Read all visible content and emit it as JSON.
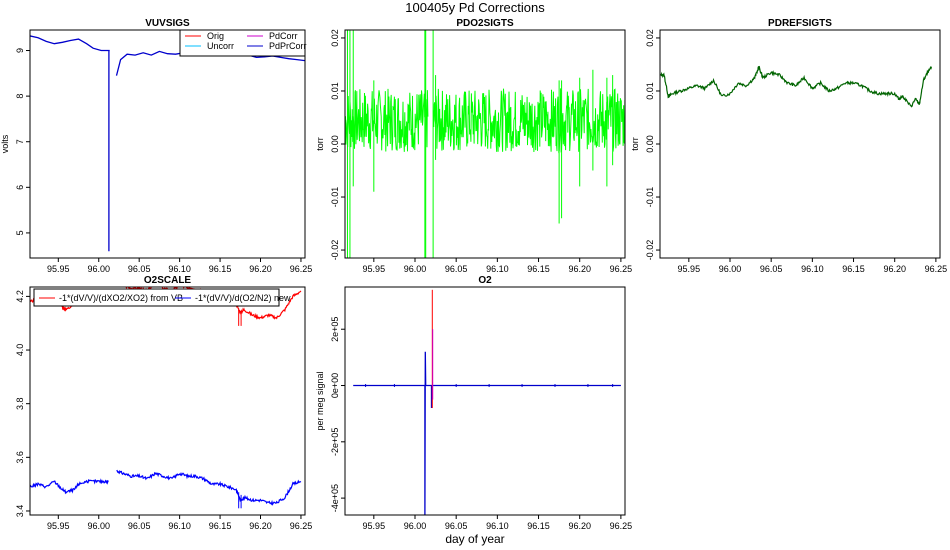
{
  "suptitle": "100405y   Pd Corrections",
  "xlabel": "day of year",
  "chart_data": [
    {
      "id": "vuvsigs",
      "type": "line",
      "title": "VUVSIGS",
      "xlabel": "",
      "ylabel": "volts",
      "xlim": [
        95.915,
        96.255
      ],
      "ylim": [
        4.45,
        9.45
      ],
      "xticks": [
        95.95,
        96.0,
        96.05,
        96.1,
        96.15,
        96.2,
        96.25
      ],
      "xtick_labels": [
        "95.95",
        "96.00",
        "96.05",
        "96.10",
        "96.15",
        "96.20",
        "96.25"
      ],
      "yticks": [
        5,
        6,
        7,
        8,
        9
      ],
      "ytick_labels": [
        "5",
        "6",
        "7",
        "8",
        "9"
      ],
      "legend": {
        "position": "top-right",
        "entries": [
          {
            "name": "Orig",
            "color": "#ff0000"
          },
          {
            "name": "PdCorr",
            "color": "#cc00cc"
          },
          {
            "name": "Uncorr",
            "color": "#00bfff"
          },
          {
            "name": "PdPrCorr",
            "color": "#0000cc"
          }
        ]
      },
      "series": [
        {
          "name": "PdPrCorr",
          "color": "#0000cc",
          "segments": [
            {
              "x": [
                95.915,
                95.925,
                95.935,
                95.945,
                95.955,
                95.965,
                95.975,
                95.985,
                95.993,
                96.003,
                96.0125,
                96.0125,
                96.0125,
                96.0135
              ],
              "y": [
                9.32,
                9.28,
                9.2,
                9.15,
                9.18,
                9.22,
                9.25,
                9.15,
                9.05,
                9.0,
                9.0,
                4.6,
                9.0,
                9.0
              ]
            },
            {
              "x": [
                96.022,
                96.027,
                96.035,
                96.045,
                96.055,
                96.065,
                96.075,
                96.085,
                96.095,
                96.105,
                96.115,
                96.125,
                96.135,
                96.145,
                96.155,
                96.165,
                96.175,
                96.185,
                96.195,
                96.205,
                96.215,
                96.225,
                96.235,
                96.245,
                96.255
              ],
              "y": [
                8.45,
                8.8,
                8.92,
                8.9,
                8.95,
                8.9,
                8.98,
                8.93,
                8.92,
                8.95,
                9.0,
                8.95,
                8.92,
                8.96,
                8.94,
                8.93,
                8.92,
                8.9,
                8.85,
                8.86,
                8.88,
                8.85,
                8.82,
                8.8,
                8.78
              ]
            }
          ]
        }
      ]
    },
    {
      "id": "pdo2sigts",
      "type": "line",
      "title": "PDO2SIGTS",
      "xlabel": "",
      "ylabel": "torr",
      "xlim": [
        95.915,
        96.255
      ],
      "ylim": [
        -0.0215,
        0.0215
      ],
      "xticks": [
        95.95,
        96.0,
        96.05,
        96.1,
        96.15,
        96.2,
        96.25
      ],
      "xtick_labels": [
        "95.95",
        "96.00",
        "96.05",
        "96.10",
        "96.15",
        "96.20",
        "96.25"
      ],
      "yticks": [
        -0.02,
        -0.01,
        0.0,
        0.01,
        0.02
      ],
      "ytick_labels": [
        "-0.02",
        "-0.01",
        "0.00",
        "0.01",
        "0.02"
      ],
      "noise_band": {
        "color": "#00ff00",
        "center": 0.0045,
        "half_width": 0.006,
        "gaps": [
          [
            96.016,
            96.022
          ]
        ]
      },
      "spikes": [
        {
          "x": 95.918,
          "y_low": -0.0215,
          "y_high": 0.0215
        },
        {
          "x": 95.921,
          "y_low": -0.0215,
          "y_high": 0.0215
        },
        {
          "x": 95.925,
          "y_low": -0.008,
          "y_high": 0.0215
        },
        {
          "x": 95.95,
          "y_low": -0.009,
          "y_high": 0.012
        },
        {
          "x": 96.012,
          "y_low": -0.0215,
          "y_high": 0.0215
        },
        {
          "x": 96.013,
          "y_low": -0.0215,
          "y_high": 0.0215
        },
        {
          "x": 96.022,
          "y_low": -0.0215,
          "y_high": 0.0215
        },
        {
          "x": 96.025,
          "y_low": -0.003,
          "y_high": 0.013
        },
        {
          "x": 96.175,
          "y_low": -0.015,
          "y_high": 0.012
        },
        {
          "x": 96.178,
          "y_low": -0.014,
          "y_high": 0.012
        },
        {
          "x": 96.2,
          "y_low": -0.008,
          "y_high": 0.0125
        },
        {
          "x": 96.216,
          "y_low": -0.005,
          "y_high": 0.014
        },
        {
          "x": 96.233,
          "y_low": -0.008,
          "y_high": 0.0125
        },
        {
          "x": 96.24,
          "y_low": -0.004,
          "y_high": 0.013
        }
      ]
    },
    {
      "id": "pdrefsigts",
      "type": "line",
      "title": "PDREFSIGTS",
      "xlabel": "",
      "ylabel": "torr",
      "xlim": [
        95.915,
        96.255
      ],
      "ylim": [
        -0.0215,
        0.0215
      ],
      "xticks": [
        95.95,
        96.0,
        96.05,
        96.1,
        96.15,
        96.2,
        96.25
      ],
      "xtick_labels": [
        "95.95",
        "96.00",
        "96.05",
        "96.10",
        "96.15",
        "96.20",
        "96.25"
      ],
      "yticks": [
        -0.02,
        -0.01,
        0.0,
        0.01,
        0.02
      ],
      "ytick_labels": [
        "-0.02",
        "-0.01",
        "0.00",
        "0.01",
        "0.02"
      ],
      "series": [
        {
          "name": "PDREFSIG",
          "color": "#006400",
          "segments": [
            {
              "x": [
                95.916,
                95.92,
                95.925,
                95.93,
                95.94,
                95.95,
                95.96,
                95.97,
                95.98,
                95.99,
                96.0,
                96.01,
                96.02,
                96.03,
                96.035,
                96.04,
                96.05,
                96.06,
                96.07,
                96.08,
                96.09,
                96.1,
                96.11,
                96.12,
                96.13,
                96.14,
                96.15,
                96.16,
                96.17,
                96.18,
                96.19,
                96.2,
                96.205,
                96.21,
                96.22,
                96.225,
                96.23,
                96.235,
                96.24,
                96.245
              ],
              "y": [
                0.013,
                0.013,
                0.009,
                0.0095,
                0.01,
                0.0105,
                0.011,
                0.0105,
                0.012,
                0.009,
                0.0095,
                0.0115,
                0.011,
                0.0125,
                0.0145,
                0.0125,
                0.0135,
                0.013,
                0.0115,
                0.011,
                0.0125,
                0.0105,
                0.0115,
                0.01,
                0.0105,
                0.0115,
                0.0115,
                0.011,
                0.01,
                0.0095,
                0.0095,
                0.0095,
                0.0085,
                0.009,
                0.007,
                0.0085,
                0.0075,
                0.012,
                0.0135,
                0.0145
              ]
            }
          ]
        }
      ]
    },
    {
      "id": "o2scale",
      "type": "line",
      "title": "O2SCALE",
      "xlabel": "",
      "ylabel": "",
      "xlim": [
        95.915,
        96.255
      ],
      "ylim": [
        3.385,
        4.235
      ],
      "xticks": [
        95.95,
        96.0,
        96.05,
        96.1,
        96.15,
        96.2,
        96.25
      ],
      "xtick_labels": [
        "95.95",
        "96.00",
        "96.05",
        "96.10",
        "96.15",
        "96.20",
        "96.25"
      ],
      "yticks": [
        3.4,
        3.6,
        3.8,
        4.0,
        4.2
      ],
      "ytick_labels": [
        "3.4",
        "3.6",
        "3.8",
        "4.0",
        "4.2"
      ],
      "legend": {
        "position": "top",
        "entries": [
          {
            "name": "-1*(dV/V)/(dXO2/XO2) from VB",
            "color": "#ff0000"
          },
          {
            "name": "-1*(dV/V)/d(O2/N2) new",
            "color": "#0000ff"
          }
        ]
      },
      "series": [
        {
          "name": "-1*(dV/V)/(dXO2/XO2) from VB",
          "color": "#ff0000",
          "segments": [
            {
              "x": [
                95.915,
                95.925,
                95.935,
                95.945,
                95.955,
                95.96,
                95.97,
                95.975,
                95.985,
                95.995,
                96.005,
                96.012
              ],
              "y": [
                4.18,
                4.19,
                4.18,
                4.2,
                4.16,
                4.15,
                4.17,
                4.2,
                4.21,
                4.2,
                4.2,
                4.2
              ]
            },
            {
              "x": [
                96.022,
                96.03,
                96.04,
                96.05,
                96.06,
                96.07,
                96.08,
                96.09,
                96.1,
                96.11,
                96.12,
                96.13,
                96.14,
                96.15,
                96.16,
                96.17,
                96.175,
                96.18,
                96.19,
                96.2,
                96.21,
                96.22,
                96.23,
                96.24,
                96.25
              ],
              "y": [
                4.25,
                4.24,
                4.23,
                4.23,
                4.22,
                4.25,
                4.23,
                4.22,
                4.24,
                4.23,
                4.23,
                4.22,
                4.2,
                4.21,
                4.2,
                4.17,
                4.14,
                4.15,
                4.13,
                4.12,
                4.13,
                4.12,
                4.15,
                4.2,
                4.22
              ]
            }
          ]
        },
        {
          "name": "-1*(dV/V)/d(O2/N2) new",
          "color": "#0000ff",
          "segments": [
            {
              "x": [
                95.915,
                95.925,
                95.935,
                95.945,
                95.955,
                95.96,
                95.97,
                95.975,
                95.985,
                95.995,
                96.005,
                96.012
              ],
              "y": [
                3.49,
                3.5,
                3.49,
                3.51,
                3.48,
                3.47,
                3.48,
                3.5,
                3.51,
                3.51,
                3.51,
                3.51
              ]
            },
            {
              "x": [
                96.022,
                96.03,
                96.04,
                96.05,
                96.06,
                96.07,
                96.08,
                96.09,
                96.1,
                96.11,
                96.12,
                96.13,
                96.14,
                96.15,
                96.16,
                96.17,
                96.175,
                96.18,
                96.19,
                96.2,
                96.21,
                96.22,
                96.23,
                96.24,
                96.25
              ],
              "y": [
                3.55,
                3.54,
                3.53,
                3.53,
                3.52,
                3.54,
                3.53,
                3.52,
                3.54,
                3.53,
                3.53,
                3.52,
                3.5,
                3.5,
                3.49,
                3.48,
                3.44,
                3.45,
                3.44,
                3.44,
                3.43,
                3.43,
                3.45,
                3.5,
                3.51
              ]
            }
          ]
        }
      ],
      "spikes": [
        {
          "x": 96.173,
          "y_low": 3.41,
          "y_high": 3.47,
          "color": "#0000ff"
        },
        {
          "x": 96.176,
          "y_low": 3.41,
          "y_high": 3.46,
          "color": "#0000ff"
        },
        {
          "x": 96.173,
          "y_low": 4.09,
          "y_high": 4.15,
          "color": "#ff0000"
        },
        {
          "x": 96.176,
          "y_low": 4.09,
          "y_high": 4.14,
          "color": "#ff0000"
        }
      ]
    },
    {
      "id": "o2",
      "type": "line",
      "title": "O2",
      "xlabel": "day of year",
      "ylabel": "per meg signal",
      "xlim": [
        95.915,
        96.255
      ],
      "ylim": [
        -460000,
        350000
      ],
      "xticks": [
        95.95,
        96.0,
        96.05,
        96.1,
        96.15,
        96.2,
        96.25
      ],
      "xtick_labels": [
        "95.95",
        "96.00",
        "96.05",
        "96.10",
        "96.15",
        "96.20",
        "96.25"
      ],
      "yticks": [
        -400000,
        -200000,
        0,
        200000
      ],
      "ytick_labels": [
        "-4e+05",
        "-2e+05",
        "0e+00",
        "2e+05"
      ],
      "series": [
        {
          "name": "O2",
          "color": "#0000cc",
          "segments": [
            {
              "x": [
                95.925,
                96.012,
                96.012,
                96.0125,
                96.013,
                96.02,
                96.02,
                96.0205,
                96.021,
                96.25
              ],
              "y": [
                0,
                0,
                -460000,
                120000,
                0,
                0,
                -80000,
                0,
                0,
                0
              ]
            }
          ]
        }
      ],
      "spikes": [
        {
          "x": 96.021,
          "y_low": -80000,
          "y_high": 340000,
          "color": "#ff0000"
        },
        {
          "x": 96.0215,
          "y_low": -50000,
          "y_high": 200000,
          "color": "#cc00cc"
        }
      ],
      "markers": {
        "color": "#0000cc",
        "x": [
          95.94,
          95.975,
          96.05,
          96.09,
          96.13,
          96.17,
          96.21,
          96.24
        ]
      }
    }
  ]
}
